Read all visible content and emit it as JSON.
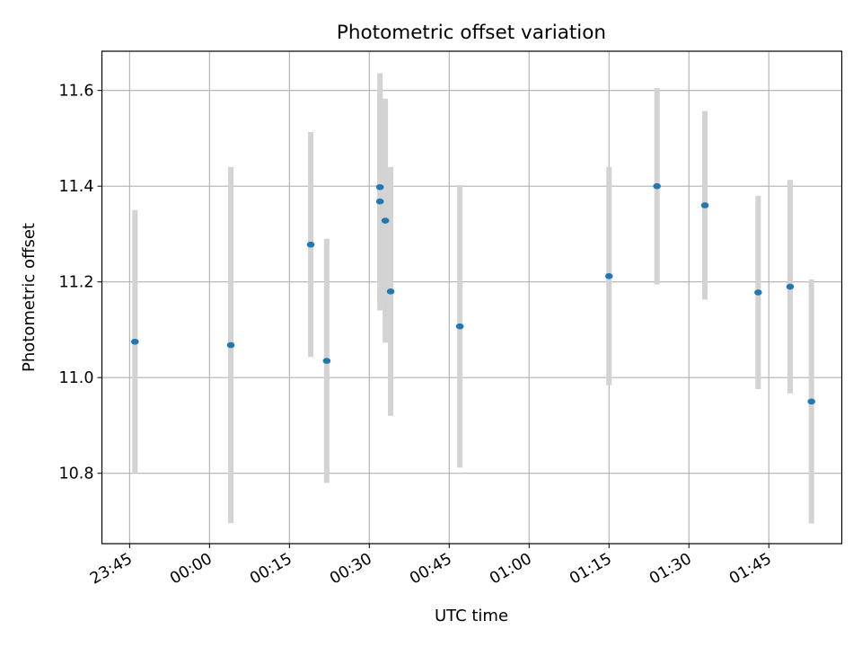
{
  "chart_data": {
    "type": "scatter",
    "title": "Photometric offset variation",
    "xlabel": "UTC time",
    "ylabel": "Photometric offset",
    "x_start_tick": "23:45",
    "xlim_minutes": [
      -5.2,
      133.7
    ],
    "ylim": [
      10.653,
      11.682
    ],
    "x_ticks": [
      "23:45",
      "00:00",
      "00:15",
      "00:30",
      "00:45",
      "01:00",
      "01:15",
      "01:30",
      "01:45"
    ],
    "y_ticks": [
      "10.8",
      "11.0",
      "11.2",
      "11.4",
      "11.6"
    ],
    "y_tick_values": [
      10.8,
      11.0,
      11.2,
      11.4,
      11.6
    ],
    "grid": true,
    "marker_color": "#1f77b4",
    "errorbar_color": "#d3d3d3",
    "series": [
      {
        "points": [
          {
            "t": "23:46",
            "y": 11.075,
            "err": 0.275
          },
          {
            "t": "00:04",
            "y": 11.068,
            "err": 0.372
          },
          {
            "t": "00:19",
            "y": 11.278,
            "err": 0.235
          },
          {
            "t": "00:22",
            "y": 11.035,
            "err": 0.255
          },
          {
            "t": "00:32",
            "y": 11.398,
            "err": 0.238
          },
          {
            "t": "00:32",
            "y": 11.368,
            "err": 0.228
          },
          {
            "t": "00:33",
            "y": 11.328,
            "err": 0.255
          },
          {
            "t": "00:34",
            "y": 11.18,
            "err": 0.26
          },
          {
            "t": "00:47",
            "y": 11.107,
            "err": 0.295
          },
          {
            "t": "01:15",
            "y": 11.212,
            "err": 0.228
          },
          {
            "t": "01:24",
            "y": 11.4,
            "err": 0.205
          },
          {
            "t": "01:33",
            "y": 11.36,
            "err": 0.197
          },
          {
            "t": "01:43",
            "y": 11.178,
            "err": 0.202
          },
          {
            "t": "01:49",
            "y": 11.19,
            "err": 0.223
          },
          {
            "t": "01:53",
            "y": 10.95,
            "err": 0.255
          }
        ]
      }
    ]
  }
}
